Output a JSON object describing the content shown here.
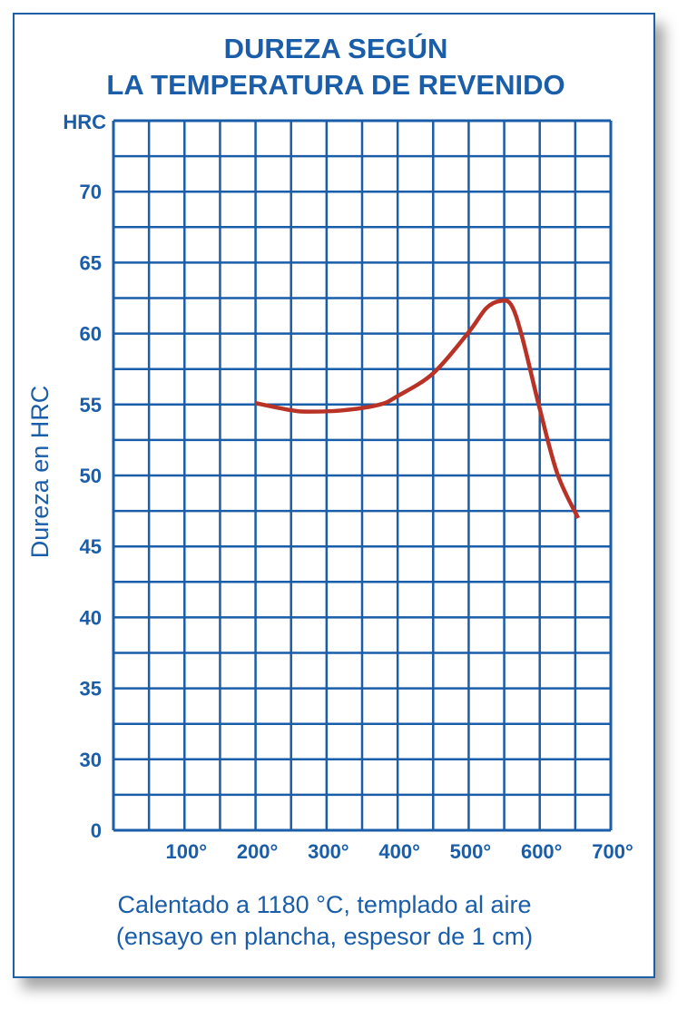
{
  "chart_data": {
    "type": "line",
    "title": [
      "DUREZA SEGÚN",
      "LA TEMPERATURA DE REVENIDO"
    ],
    "ylabel": "Dureza en HRC",
    "yunit": "HRC",
    "xlabel": [
      "Calentado a 1180 °C, templado al aire",
      "(ensayo en plancha, espesor de 1 cm)"
    ],
    "xlim": [
      0,
      700
    ],
    "ylim": [
      25,
      75
    ],
    "y_axis_break": "0 shown at bottom below 30",
    "xticks": [
      100,
      200,
      300,
      400,
      500,
      600,
      700
    ],
    "xtick_labels": [
      "100°",
      "200°",
      "300°",
      "400°",
      "500°",
      "600°",
      "700°"
    ],
    "yticks": [
      0,
      30,
      35,
      40,
      45,
      50,
      55,
      60,
      65,
      70
    ],
    "ytick_labels": [
      "0",
      "30",
      "35",
      "40",
      "45",
      "50",
      "55",
      "60",
      "65",
      "70"
    ],
    "grid": true,
    "series": [
      {
        "name": "Dureza",
        "color": "#b83226",
        "x": [
          200,
          250,
          275,
          325,
          375,
          400,
          450,
          500,
          525,
          545,
          560,
          575,
          600,
          625,
          654
        ],
        "y": [
          55.1,
          54.6,
          54.5,
          54.6,
          55.0,
          55.6,
          57.2,
          60.1,
          61.8,
          62.3,
          62.0,
          59.8,
          54.7,
          50.1,
          47.0
        ]
      }
    ],
    "colors": {
      "axis": "#1a5da8",
      "line": "#b83226"
    }
  }
}
